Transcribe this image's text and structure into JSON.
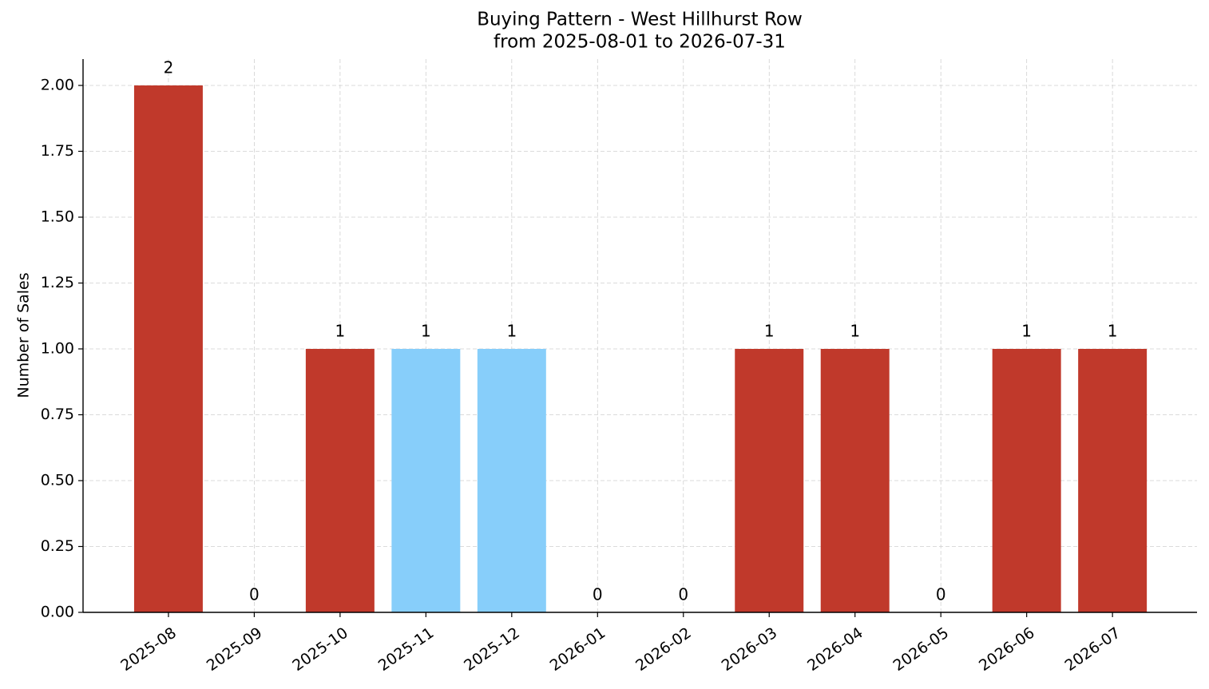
{
  "chart_data": {
    "type": "bar",
    "title": "Buying Pattern - West Hillhurst Row",
    "subtitle": "from 2025-08-01 to 2026-07-31",
    "y_label": "Number of Sales",
    "categories": [
      "2025-08",
      "2025-09",
      "2025-10",
      "2025-11",
      "2025-12",
      "2026-01",
      "2026-02",
      "2026-03",
      "2026-04",
      "2026-05",
      "2026-06",
      "2026-07"
    ],
    "values": [
      2,
      0,
      1,
      1,
      1,
      0,
      0,
      1,
      1,
      0,
      1,
      1
    ],
    "colors": [
      "#c0392b",
      "#c0392b",
      "#c0392b",
      "#87cefa",
      "#87cefa",
      "#c0392b",
      "#c0392b",
      "#c0392b",
      "#c0392b",
      "#c0392b",
      "#c0392b",
      "#c0392b"
    ],
    "ylim": [
      0,
      2.1
    ],
    "yticks": [
      {
        "value": 0,
        "label": "0.00"
      },
      {
        "value": 0.25,
        "label": "0.25"
      },
      {
        "value": 0.5,
        "label": "0.50"
      },
      {
        "value": 0.75,
        "label": "0.75"
      },
      {
        "value": 1,
        "label": "1.00"
      },
      {
        "value": 1.25,
        "label": "1.25"
      },
      {
        "value": 1.5,
        "label": "1.50"
      },
      {
        "value": 1.75,
        "label": "1.75"
      },
      {
        "value": 2,
        "label": "2.00"
      }
    ],
    "grid": true
  }
}
